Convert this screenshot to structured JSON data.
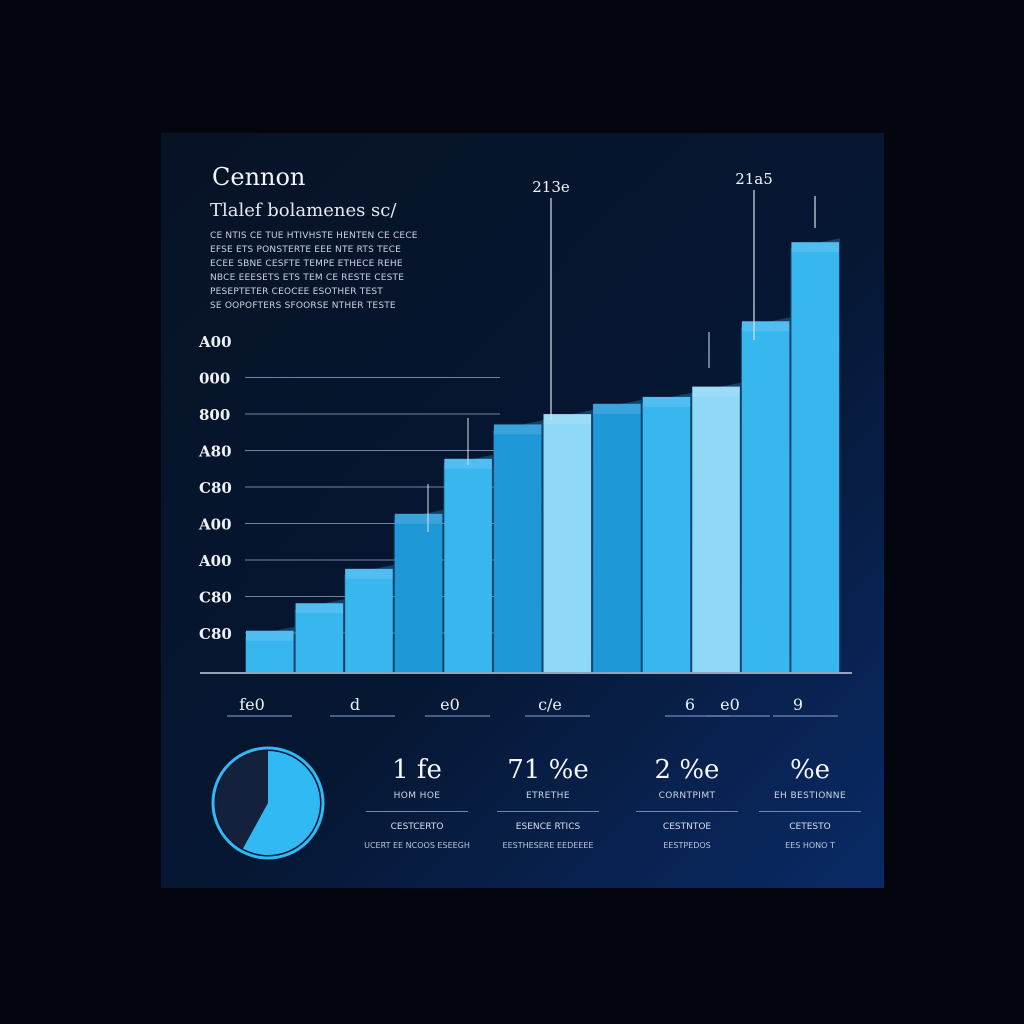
{
  "header": {
    "title": "Cennon",
    "subtitle": "Tlalef bolamenes sc/",
    "description_lines": [
      "CE NTIS CE TUE HTIVHSTE HENTEN CE CECE",
      "EFSE ETS PONSTERTE EEE NTE RTS TECE",
      "ECEE SBNE CESFTE TEMPE ETHECE REHE",
      "NBCE EEESETS ETS TEM CE RESTE CESTE",
      "PESEPTETER CEOCEE ESOTHER TEST",
      "SE OOPOFTERS SFOORSE NTHER TESTE"
    ]
  },
  "chart_data": {
    "type": "bar",
    "ytick_labels": [
      "A00",
      "000",
      "800",
      "A80",
      "C80",
      "A00",
      "A00",
      "C80",
      "C80"
    ],
    "xtick_labels": [
      "fe0",
      "d",
      "e0",
      "c/e",
      "6",
      "e0",
      "9"
    ],
    "values": [
      12,
      20,
      30,
      46,
      62,
      72,
      75,
      78,
      80,
      83,
      102,
      125
    ],
    "ylim": [
      0,
      130
    ],
    "callouts": [
      "213e",
      "21a5",
      ""
    ],
    "grid": true,
    "colors": {
      "bar_light": "#8fd8f6",
      "bar_mid": "#38b6ee",
      "bar_dark": "#1e98d6",
      "grid": "#8d9fbf"
    }
  },
  "donut": {
    "fraction": 0.58,
    "color_fill": "#30b9f2",
    "color_empty": "#14213c"
  },
  "stats": [
    {
      "value": "1 fe",
      "label": "HOM HOE",
      "sub1": "CESTCERTO",
      "sub2": "UCERT EE NCOOS ESEEGH"
    },
    {
      "value": "71 %e",
      "label": "ETRETHE",
      "sub1": "ESENCE RTICS",
      "sub2": "EESTHESERE EEDEEEE"
    },
    {
      "value": "2 %e",
      "label": "CORNTPIMT",
      "sub1": "CESTNTOE",
      "sub2": "EESTPEDOS"
    },
    {
      "value": "%e",
      "label": "EH BESTIONNE",
      "sub1": "CETESTO",
      "sub2": "EES HONO T"
    }
  ]
}
